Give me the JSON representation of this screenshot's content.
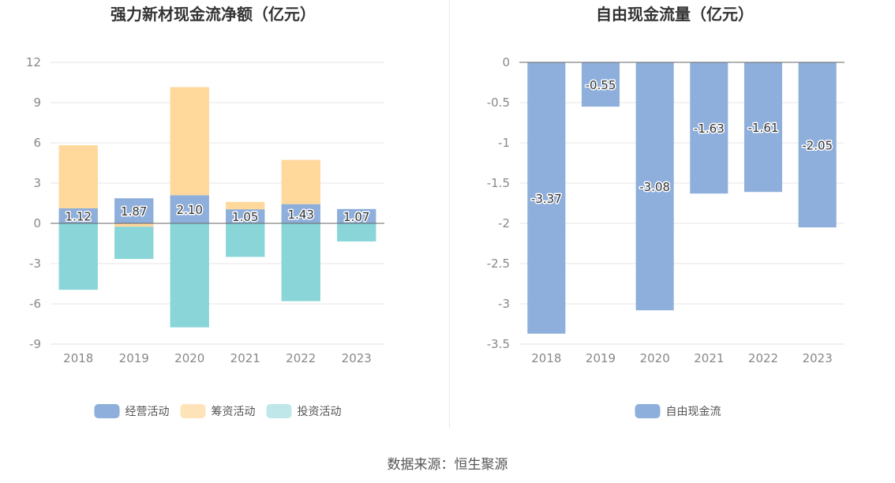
{
  "source_label": "数据来源：恒生聚源",
  "chart_data": [
    {
      "type": "bar",
      "stacked": true,
      "title": "强力新材现金流净额（亿元）",
      "categories": [
        "2018",
        "2019",
        "2020",
        "2021",
        "2022",
        "2023"
      ],
      "ylim": [
        -9,
        12
      ],
      "yticks": [
        12,
        9,
        6,
        3,
        0,
        -3,
        -6,
        -9
      ],
      "grid": true,
      "legend_position": "bottom",
      "series": [
        {
          "name": "经营活动",
          "color": "#8eaedb",
          "values": [
            1.12,
            1.87,
            2.1,
            1.05,
            1.43,
            1.07
          ],
          "labels": [
            "1.12",
            "1.87",
            "2.10",
            "1.05",
            "1.43",
            "1.07"
          ]
        },
        {
          "name": "筹资活动",
          "color": "#ffd89c",
          "values": [
            4.7,
            -0.25,
            8.05,
            0.55,
            3.3,
            0.0
          ],
          "labels": []
        },
        {
          "name": "投资活动",
          "color": "#89d5d8",
          "values": [
            -4.95,
            -2.4,
            -7.75,
            -2.5,
            -5.8,
            -1.35
          ],
          "labels": []
        }
      ],
      "legend": [
        {
          "name": "经营活动",
          "color": "#8eaedb"
        },
        {
          "name": "筹资活动",
          "color": "#ffe3b8"
        },
        {
          "name": "投资活动",
          "color": "#bfe6e8"
        }
      ]
    },
    {
      "type": "bar",
      "title": "自由现金流量（亿元）",
      "categories": [
        "2018",
        "2019",
        "2020",
        "2021",
        "2022",
        "2023"
      ],
      "ylim": [
        -3.5,
        0
      ],
      "yticks": [
        0,
        -0.5,
        -1,
        -1.5,
        -2,
        -2.5,
        -3,
        -3.5
      ],
      "ytick_labels": [
        "0",
        "-0.5",
        "-1",
        "-1.5",
        "-2",
        "-2.5",
        "-3",
        "-3.5"
      ],
      "grid": true,
      "legend_position": "bottom",
      "series": [
        {
          "name": "自由现金流",
          "color": "#8eaedb",
          "values": [
            -3.37,
            -0.55,
            -3.08,
            -1.63,
            -1.61,
            -2.05
          ],
          "labels": [
            "-3.37",
            "-0.55",
            "-3.08",
            "-1.63",
            "-1.61",
            "-2.05"
          ]
        }
      ],
      "legend": [
        {
          "name": "自由现金流",
          "color": "#8eaedb"
        }
      ]
    }
  ]
}
